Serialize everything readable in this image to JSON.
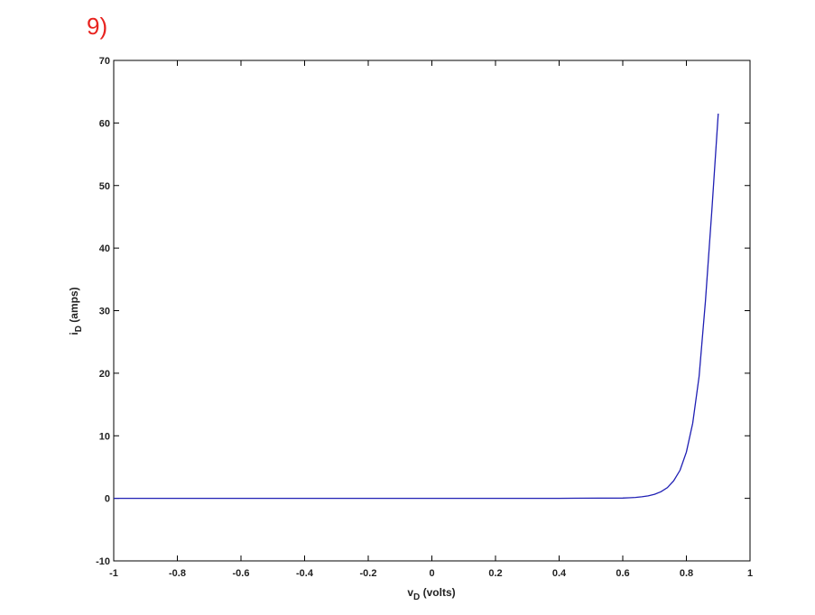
{
  "problem_number": "9)",
  "chart_data": {
    "type": "line",
    "title": "",
    "xlabel_main": "v",
    "xlabel_sub": "D",
    "xlabel_rest": " (volts)",
    "ylabel_main": "i",
    "ylabel_sub": "D",
    "ylabel_rest": " (amps)",
    "xlim": [
      -1,
      1
    ],
    "ylim": [
      -10,
      70
    ],
    "xticks": [
      -1,
      -0.8,
      -0.6,
      -0.4,
      -0.2,
      0,
      0.2,
      0.4,
      0.6,
      0.8,
      1
    ],
    "xtick_labels": [
      "-1",
      "-0.8",
      "-0.6",
      "-0.4",
      "-0.2",
      "0",
      "0.2",
      "0.4",
      "0.6",
      "0.8",
      "1"
    ],
    "yticks": [
      -10,
      0,
      10,
      20,
      30,
      40,
      50,
      60,
      70
    ],
    "ytick_labels": [
      "-10",
      "0",
      "10",
      "20",
      "30",
      "40",
      "50",
      "60",
      "70"
    ],
    "grid": false,
    "line_color": "#1f1fb4",
    "series": [
      {
        "x": [
          -1,
          -0.8,
          -0.6,
          -0.4,
          -0.2,
          0,
          0.2,
          0.4,
          0.6,
          0.62,
          0.64,
          0.66,
          0.68,
          0.7,
          0.72,
          0.74,
          0.76,
          0.78,
          0.8,
          0.82,
          0.84,
          0.86,
          0.88,
          0.9
        ],
        "y": [
          0,
          0,
          0,
          0,
          0,
          0,
          0,
          0,
          0.05,
          0.09,
          0.15,
          0.25,
          0.4,
          0.65,
          1.05,
          1.7,
          2.8,
          4.5,
          7.4,
          12,
          19.5,
          31.5,
          46,
          61.5
        ]
      }
    ]
  }
}
